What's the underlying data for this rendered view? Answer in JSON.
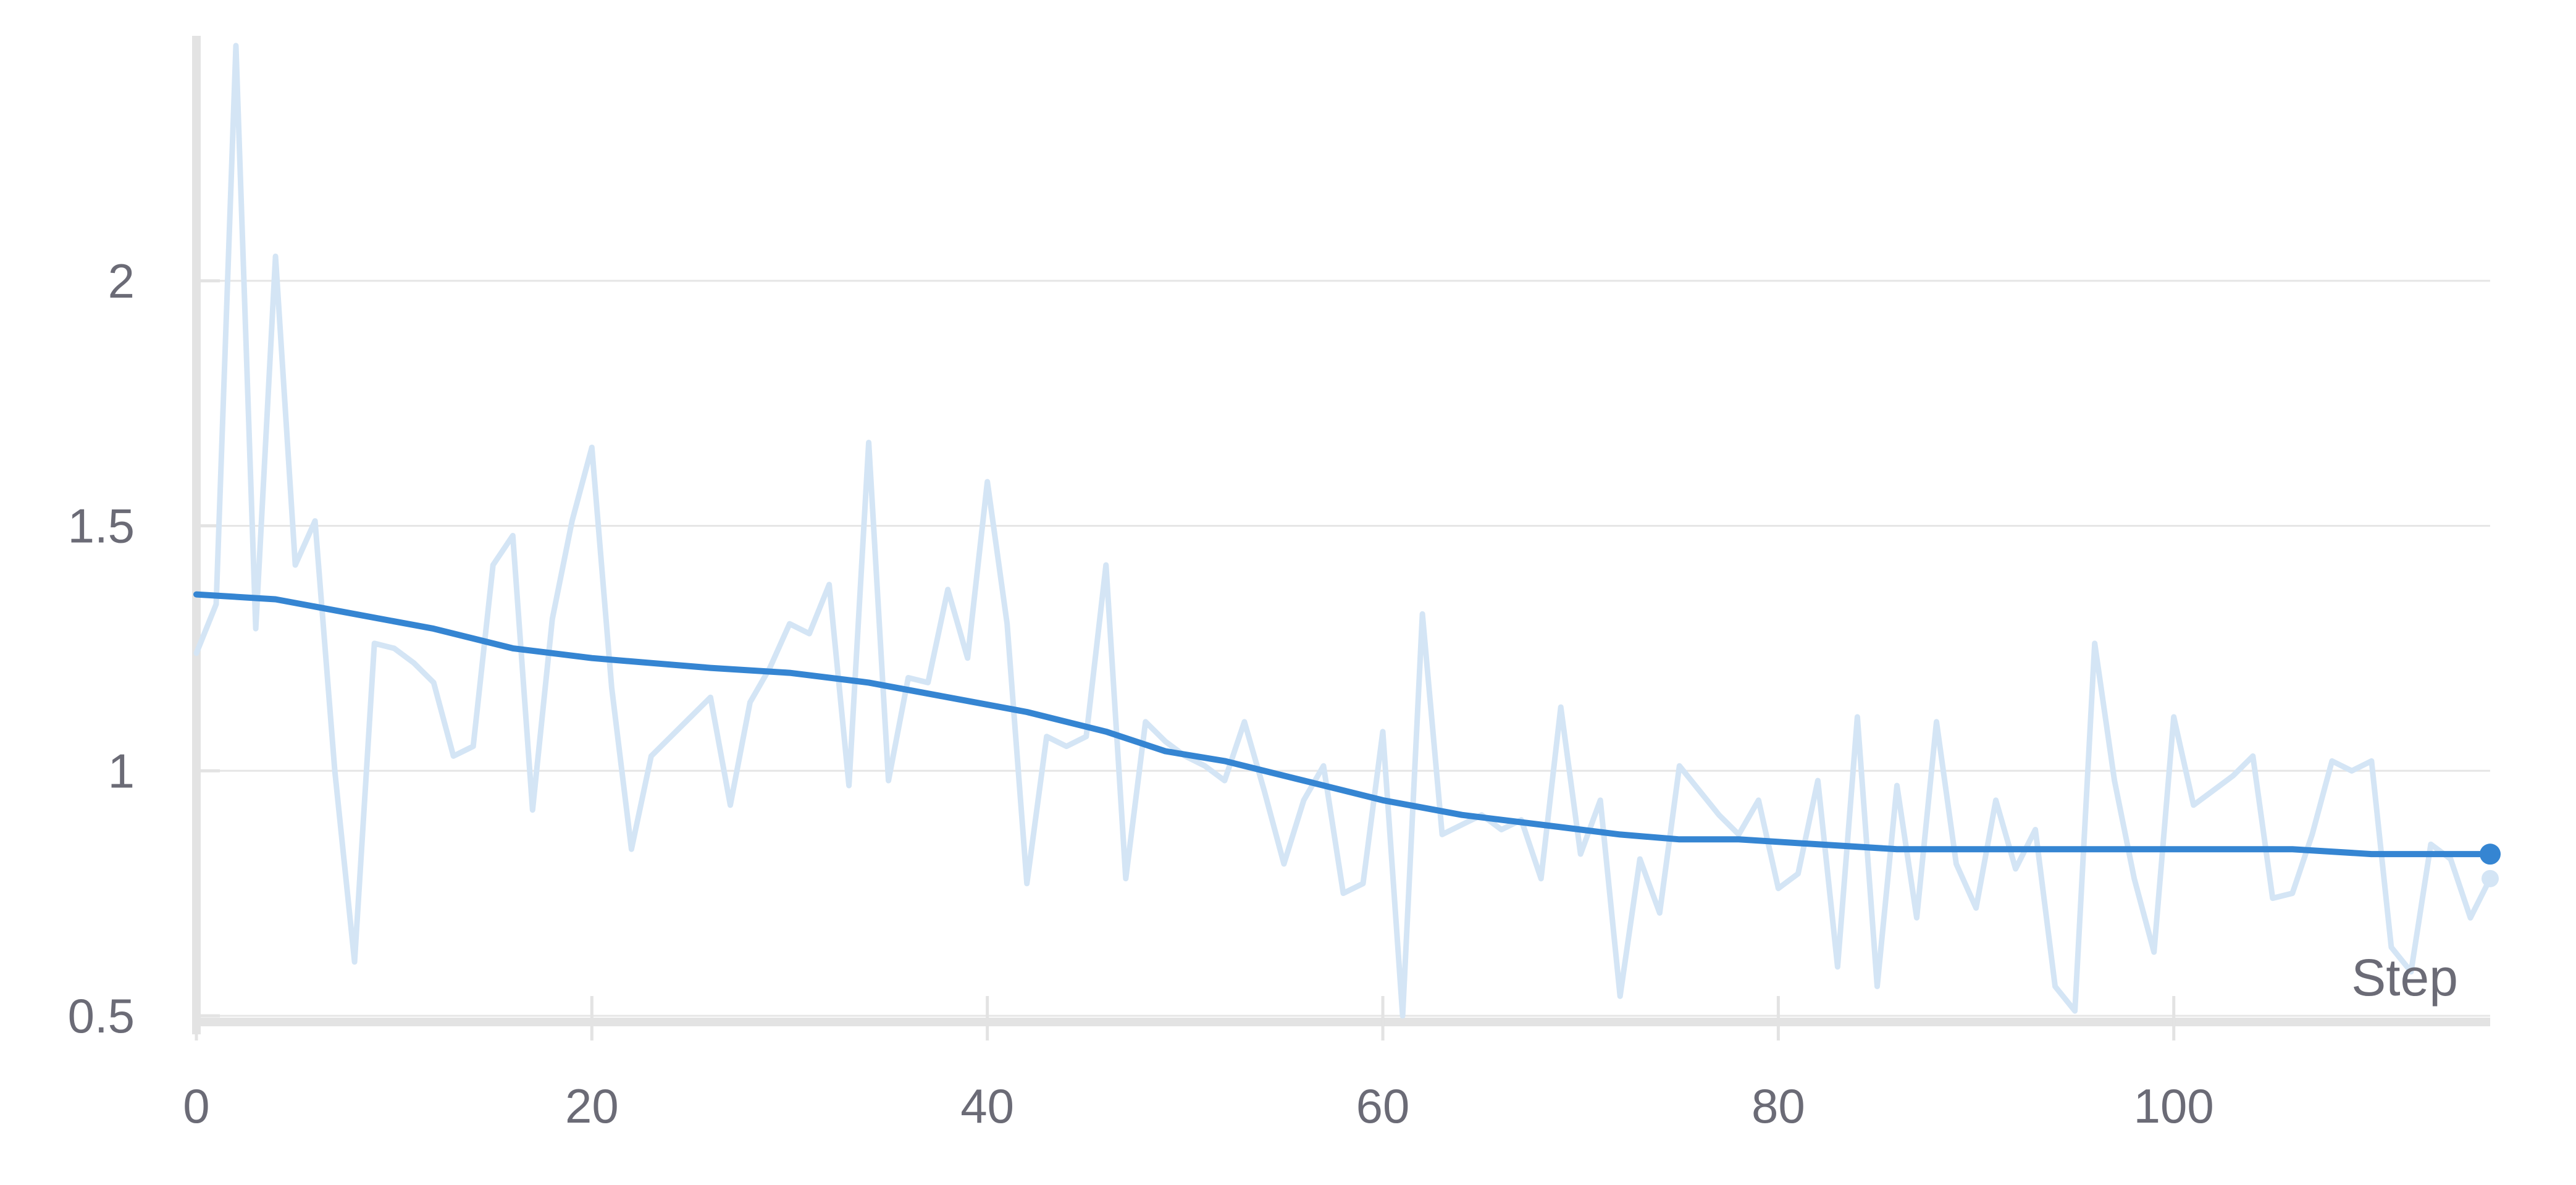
{
  "chart_data": {
    "type": "line",
    "title": "",
    "xlabel": "Step",
    "ylabel": "",
    "xlim": [
      0,
      116
    ],
    "ylim": [
      0.5,
      2.5
    ],
    "x_ticks": [
      0,
      20,
      40,
      60,
      80,
      100
    ],
    "y_ticks": [
      0.5,
      1,
      1.5,
      2
    ],
    "x_tick_labels": [
      "0",
      "20",
      "40",
      "60",
      "80",
      "100"
    ],
    "y_tick_labels": [
      "0.5",
      "1",
      "1.5",
      "2"
    ],
    "grid": "horizontal",
    "legend": "none",
    "colors": {
      "raw": "#d4e5f5",
      "smoothed": "#3585d2",
      "grid": "#e6e6e6",
      "axis": "#e3e3e3"
    },
    "series": [
      {
        "style": "raw",
        "x": [
          0,
          1,
          2,
          3,
          4,
          5,
          6,
          7,
          8,
          9,
          10,
          11,
          12,
          13,
          14,
          15,
          16,
          17,
          18,
          19,
          20,
          21,
          22,
          23,
          24,
          25,
          26,
          27,
          28,
          29,
          30,
          31,
          32,
          33,
          34,
          35,
          36,
          37,
          38,
          39,
          40,
          41,
          42,
          43,
          44,
          45,
          46,
          47,
          48,
          49,
          50,
          51,
          52,
          53,
          54,
          55,
          56,
          57,
          58,
          59,
          60,
          61,
          62,
          63,
          64,
          65,
          66,
          67,
          68,
          69,
          70,
          71,
          72,
          73,
          74,
          75,
          76,
          77,
          78,
          79,
          80,
          81,
          82,
          83,
          84,
          85,
          86,
          87,
          88,
          89,
          90,
          91,
          92,
          93,
          94,
          95,
          96,
          97,
          98,
          99,
          100,
          101,
          102,
          103,
          104,
          105,
          106,
          107,
          108,
          109,
          110,
          111,
          112,
          113,
          114,
          115,
          116
        ],
        "y": [
          1.24,
          1.34,
          2.48,
          1.29,
          2.05,
          1.42,
          1.51,
          1.0,
          0.61,
          1.26,
          1.25,
          1.22,
          1.18,
          1.03,
          1.05,
          1.42,
          1.48,
          0.92,
          1.31,
          1.51,
          1.66,
          1.17,
          0.84,
          1.03,
          1.07,
          1.11,
          1.15,
          0.93,
          1.14,
          1.21,
          1.3,
          1.28,
          1.38,
          0.97,
          1.67,
          0.98,
          1.19,
          1.18,
          1.37,
          1.23,
          1.59,
          1.3,
          0.77,
          1.07,
          1.05,
          1.07,
          1.42,
          0.78,
          1.1,
          1.06,
          1.03,
          1.01,
          0.98,
          1.1,
          0.96,
          0.81,
          0.94,
          1.01,
          0.75,
          0.77,
          1.08,
          0.5,
          1.32,
          0.87,
          0.89,
          0.91,
          0.88,
          0.9,
          0.78,
          1.13,
          0.83,
          0.94,
          0.54,
          0.82,
          0.71,
          1.01,
          0.96,
          0.91,
          0.87,
          0.94,
          0.76,
          0.79,
          0.98,
          0.6,
          1.11,
          0.56,
          0.97,
          0.7,
          1.1,
          0.81,
          0.72,
          0.94,
          0.8,
          0.88,
          0.56,
          0.51,
          1.26,
          0.98,
          0.78,
          0.63,
          1.11,
          0.93,
          0.96,
          0.99,
          1.03,
          0.74,
          0.75,
          0.87,
          1.02,
          1.0,
          1.02,
          0.64,
          0.59,
          0.85,
          0.82,
          0.7,
          0.78
        ]
      },
      {
        "style": "smoothed",
        "x": [
          0,
          4,
          8,
          12,
          16,
          20,
          23,
          26,
          30,
          34,
          38,
          42,
          46,
          49,
          52,
          56,
          60,
          64,
          68,
          72,
          75,
          78,
          82,
          86,
          90,
          94,
          98,
          102,
          106,
          110,
          116
        ],
        "y": [
          1.36,
          1.35,
          1.32,
          1.29,
          1.25,
          1.23,
          1.22,
          1.21,
          1.2,
          1.18,
          1.15,
          1.12,
          1.08,
          1.04,
          1.02,
          0.98,
          0.94,
          0.91,
          0.89,
          0.87,
          0.86,
          0.86,
          0.85,
          0.84,
          0.84,
          0.84,
          0.84,
          0.84,
          0.84,
          0.83,
          0.83
        ]
      }
    ]
  }
}
